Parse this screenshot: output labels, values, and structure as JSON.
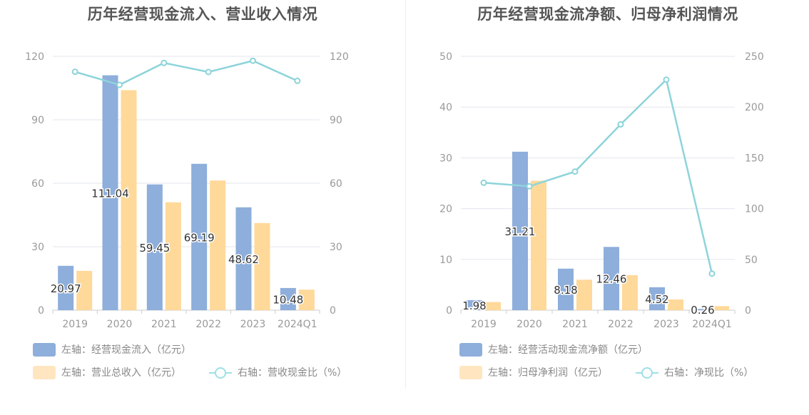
{
  "chart_data": [
    {
      "type": "bar",
      "title": "历年经营现金流入、营业收入情况",
      "categories": [
        "2019",
        "2020",
        "2021",
        "2022",
        "2023",
        "2024Q1"
      ],
      "series": [
        {
          "name": "左轴：经营现金流入（亿元）",
          "axis": "left",
          "kind": "bar",
          "color": "#8eaedb",
          "values": [
            20.97,
            111.04,
            59.45,
            69.19,
            48.62,
            10.48
          ],
          "labels": [
            "20.97",
            "111.04",
            "59.45",
            "69.19",
            "48.62",
            "10.48"
          ]
        },
        {
          "name": "左轴：营业总收入（亿元）",
          "axis": "left",
          "kind": "bar",
          "color": "#ffd99a",
          "values": [
            18.6,
            104.0,
            51.0,
            61.3,
            41.2,
            9.7
          ]
        },
        {
          "name": "右轴：营收现金比（%）",
          "axis": "right",
          "kind": "line",
          "color": "#8dd4da",
          "values": [
            112.7,
            106.5,
            116.9,
            112.6,
            117.9,
            108.4
          ]
        }
      ],
      "left_axis": {
        "min": 0,
        "max": 120,
        "ticks": [
          "0",
          "30",
          "60",
          "90",
          "120"
        ]
      },
      "right_axis": {
        "min": 0,
        "max": 120,
        "ticks": [
          "0",
          "30",
          "60",
          "90",
          "120"
        ]
      },
      "grid": true,
      "legend_position": "bottom-left"
    },
    {
      "type": "bar",
      "title": "历年经营现金流净额、归母净利润情况",
      "categories": [
        "2019",
        "2020",
        "2021",
        "2022",
        "2023",
        "2024Q1"
      ],
      "series": [
        {
          "name": "左轴：经营活动现金流净额（亿元）",
          "axis": "left",
          "kind": "bar",
          "color": "#8eaedb",
          "values": [
            1.98,
            31.21,
            8.18,
            12.46,
            4.52,
            0.26
          ],
          "labels": [
            "1.98",
            "31.21",
            "8.18",
            "12.46",
            "4.52",
            "0.26"
          ]
        },
        {
          "name": "左轴：归母净利润（亿元）",
          "axis": "left",
          "kind": "bar",
          "color": "#ffd99a",
          "values": [
            1.6,
            25.5,
            6.0,
            6.9,
            2.1,
            0.8
          ]
        },
        {
          "name": "右轴：净现比（%）",
          "axis": "right",
          "kind": "line",
          "color": "#8dd4da",
          "values": [
            125.5,
            122.0,
            136.5,
            183.0,
            227.0,
            36.0
          ]
        }
      ],
      "left_axis": {
        "min": 0,
        "max": 50,
        "ticks": [
          "0",
          "10",
          "20",
          "30",
          "40",
          "50"
        ]
      },
      "right_axis": {
        "min": 0,
        "max": 250,
        "ticks": [
          "0",
          "50",
          "100",
          "150",
          "200",
          "250"
        ]
      },
      "grid": true,
      "legend_position": "bottom-left"
    }
  ]
}
